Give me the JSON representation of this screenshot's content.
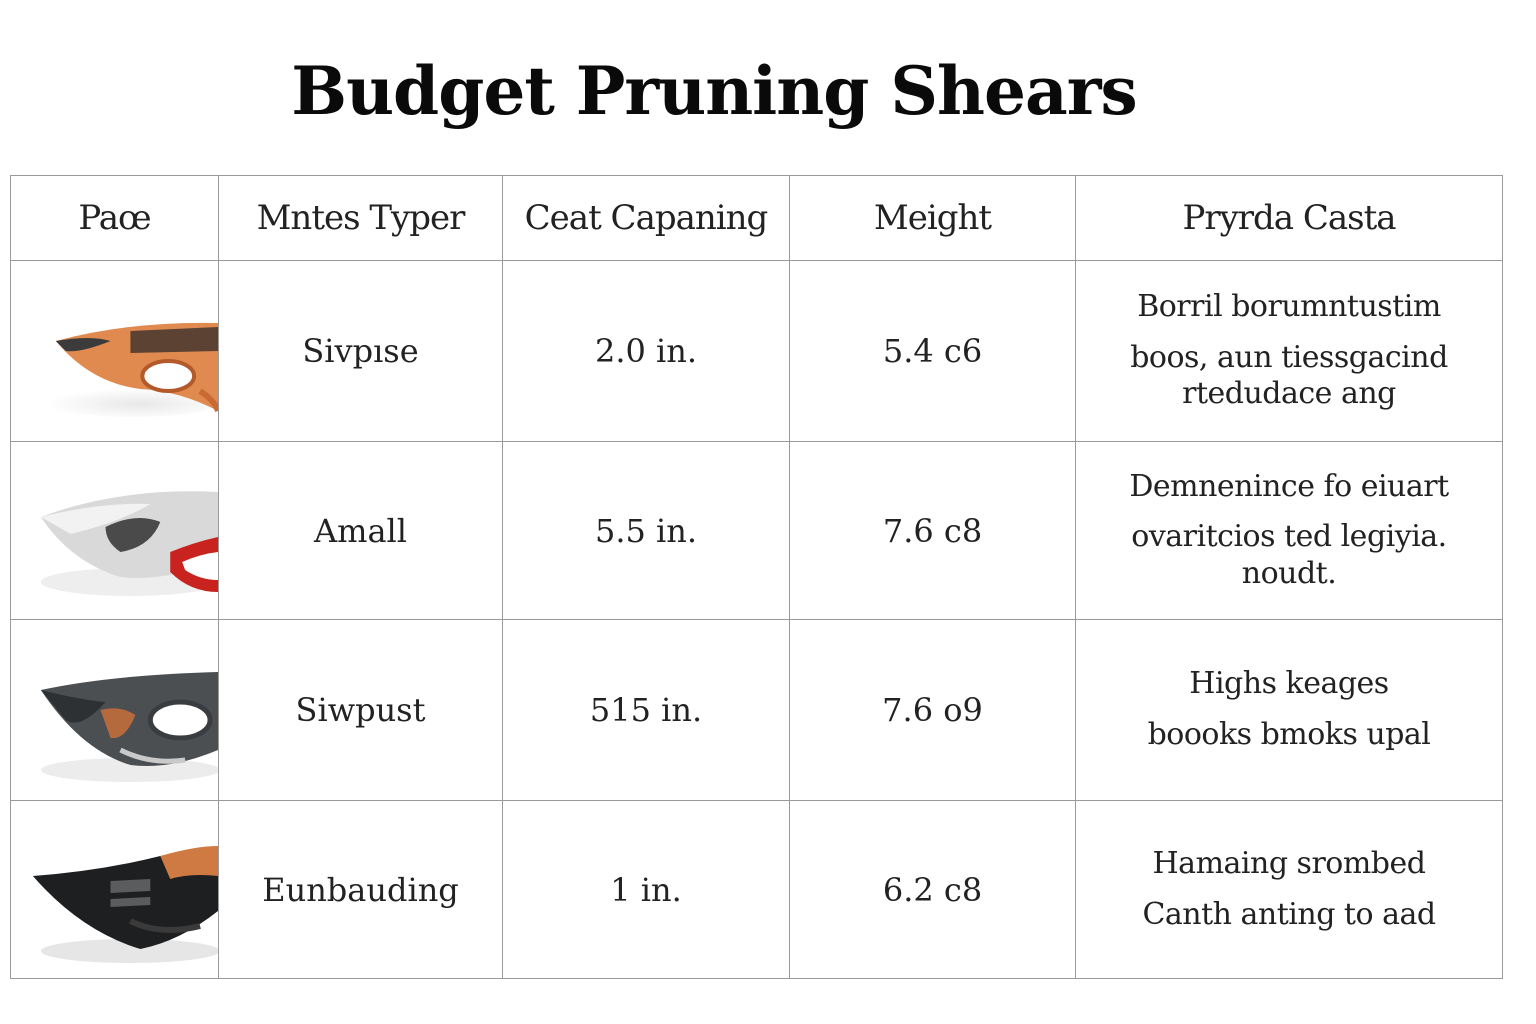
{
  "title": "Budget Pruning Shears",
  "columns": [
    "Paœ",
    "Mntes Typer",
    "Ceat Capaning",
    "Meight",
    "Pryrda Casta"
  ],
  "rows": [
    {
      "image_icon": "pruning-shears-orange-icon",
      "type": "Sivpıse",
      "cut": "2.0 in.",
      "weight": "5.4 c6",
      "notes": [
        "Borril borumntustim",
        "boos, aun tiessgacind",
        "rtedudace ang"
      ]
    },
    {
      "image_icon": "pruning-shears-white-red-icon",
      "type": "Amall",
      "cut": "5.5 in.",
      "weight": "7.6 c8",
      "notes": [
        "Demnenince fo eiuart",
        "ovaritcios ted legiyia.",
        "noudt."
      ]
    },
    {
      "image_icon": "pruning-shears-gray-icon",
      "type": "Siwpust",
      "cut": "515 in.",
      "weight": "7.6 o9",
      "notes": [
        "Highs keages",
        "boooks bmoks upal"
      ]
    },
    {
      "image_icon": "pruning-shears-black-icon",
      "type": "Eunbauding",
      "cut": "1 in.",
      "weight": "6.2 c8",
      "notes": [
        "Hamaing srombed",
        "Canth anting to aad"
      ]
    }
  ],
  "colors": {
    "border": "#9a9a9a",
    "title": "#0a0a0a",
    "text": "#222222"
  }
}
